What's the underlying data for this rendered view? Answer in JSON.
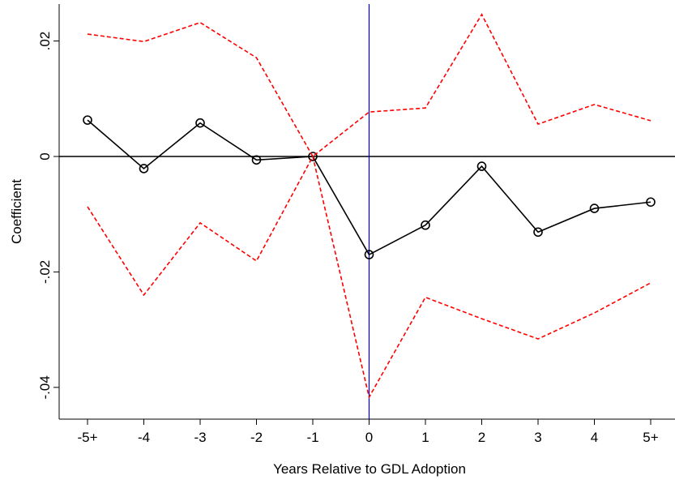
{
  "chart_data": {
    "type": "line",
    "xlabel": "Years Relative to GDL Adoption",
    "ylabel": "Coefficient",
    "categories": [
      "-5+",
      "-4",
      "-3",
      "-2",
      "-1",
      "0",
      "1",
      "2",
      "3",
      "4",
      "5+"
    ],
    "series": [
      {
        "color": "#000000",
        "dash": "solid",
        "markers": true,
        "values": [
          0.0063,
          -0.0021,
          0.0058,
          -0.0006,
          0,
          -0.017,
          -0.0119,
          -0.0017,
          -0.0131,
          -0.009,
          -0.0079
        ]
      },
      {
        "color": "#ff0000",
        "dash": "dashed",
        "markers": false,
        "values": [
          0.0212,
          0.0199,
          0.0232,
          0.0171,
          0,
          0.0077,
          0.0084,
          0.0246,
          0.0056,
          0.009,
          0.0062
        ]
      },
      {
        "color": "#ff0000",
        "dash": "dashed",
        "markers": false,
        "values": [
          -0.0087,
          -0.024,
          -0.0115,
          -0.0181,
          0,
          -0.0417,
          -0.0244,
          -0.0281,
          -0.0316,
          -0.0271,
          -0.0219
        ]
      }
    ],
    "ylim": [
      -0.0455,
      0.0264
    ],
    "yticks": [
      {
        "value": 0.02,
        "label": ".02"
      },
      0,
      {
        "value": -0.02,
        "label": "-.02"
      },
      {
        "value": -0.04,
        "label": "-.04"
      }
    ],
    "hline": 0,
    "hline_color": "#000000",
    "vline": "0",
    "vline_color": "#0000cc"
  }
}
